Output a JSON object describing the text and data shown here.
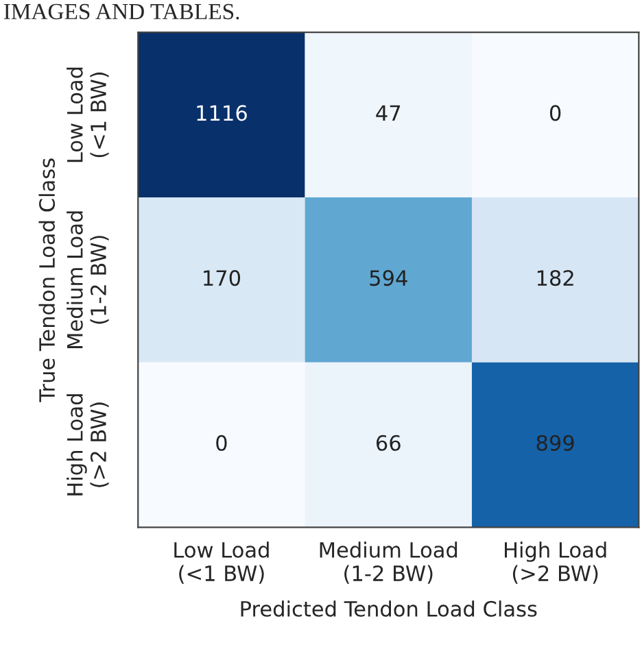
{
  "chart_data": {
    "type": "heatmap",
    "xlabel": "Predicted Tendon Load Class",
    "ylabel": "True Tendon Load Class",
    "annotations": [
      "IMAGES AND TABLES."
    ],
    "categories": [
      "Low Load\n(<1 BW)",
      "Medium Load\n(1-2 BW)",
      "High Load\n(>2 BW)"
    ],
    "y_categories": [
      "Low Load\n(<1 BW)",
      "Medium Load\n(1-2 BW)",
      "High Load\n(>2 BW)"
    ],
    "cells": [
      [
        1116,
        47,
        0
      ],
      [
        170,
        594,
        182
      ],
      [
        0,
        66,
        899
      ]
    ],
    "data_labels": true
  }
}
